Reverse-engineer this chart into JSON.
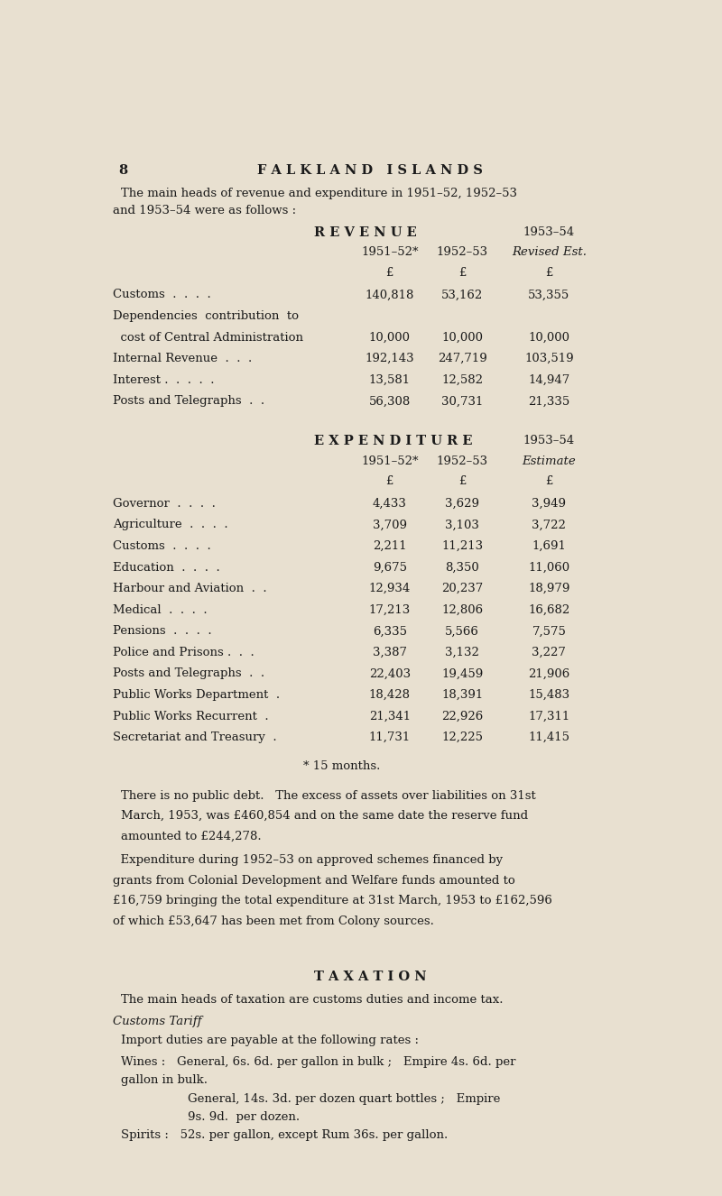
{
  "bg_color": "#e8e0d0",
  "text_color": "#1a1a1a",
  "page_num": "8",
  "page_header": "F A L K L A N D   I S L A N D S",
  "intro_line1": "The main heads of revenue and expenditure in 1951–52, 1952–53",
  "intro_line2": "and 1953–54 were as follows :",
  "revenue_header": "R E V E N U E",
  "revenue_col1": "1951–52*",
  "revenue_col2": "1952–53",
  "revenue_col3": "1953–54",
  "revenue_col3b": "Revised Est.",
  "revenue_pound": "£",
  "revenue_rows": [
    [
      "Customs  .  .  .  .",
      "140,818",
      "53,162",
      "53,355"
    ],
    [
      "Dependencies  contribution  to",
      "",
      "",
      ""
    ],
    [
      "  cost of Central Administration",
      "10,000",
      "10,000",
      "10,000"
    ],
    [
      "Internal Revenue  .  .  .",
      "192,143",
      "247,719",
      "103,519"
    ],
    [
      "Interest .  .  .  .  .",
      "13,581",
      "12,582",
      "14,947"
    ],
    [
      "Posts and Telegraphs  .  .",
      "56,308",
      "30,731",
      "21,335"
    ]
  ],
  "expenditure_header": "E X P E N D I T U R E",
  "exp_col3": "1953–54",
  "exp_col3b": "Estimate",
  "exp_rows": [
    [
      "Governor  .  .  .  .",
      "4,433",
      "3,629",
      "3,949"
    ],
    [
      "Agriculture  .  .  .  .",
      "3,709",
      "3,103",
      "3,722"
    ],
    [
      "Customs  .  .  .  .",
      "2,211",
      "11,213",
      "1,691"
    ],
    [
      "Education  .  .  .  .",
      "9,675",
      "8,350",
      "11,060"
    ],
    [
      "Harbour and Aviation  .  .",
      "12,934",
      "20,237",
      "18,979"
    ],
    [
      "Medical  .  .  .  .",
      "17,213",
      "12,806",
      "16,682"
    ],
    [
      "Pensions  .  .  .  .",
      "6,335",
      "5,566",
      "7,575"
    ],
    [
      "Police and Prisons .  .  .",
      "3,387",
      "3,132",
      "3,227"
    ],
    [
      "Posts and Telegraphs  .  .",
      "22,403",
      "19,459",
      "21,906"
    ],
    [
      "Public Works Department  .",
      "18,428",
      "18,391",
      "15,483"
    ],
    [
      "Public Works Recurrent  .",
      "21,341",
      "22,926",
      "17,311"
    ],
    [
      "Secretariat and Treasury  .",
      "11,731",
      "12,225",
      "11,415"
    ]
  ],
  "footnote": "* 15 months.",
  "para1_lines": [
    "There is no public debt.   The excess of assets over liabilities on 31st",
    "March, 1953, was £460,854 and on the same date the reserve fund",
    "amounted to £244,278."
  ],
  "para2_lines": [
    "  Expenditure during 1952–53 on approved schemes financed by",
    "grants from Colonial Development and Welfare funds amounted to",
    "£16,759 bringing the total expenditure at 31st March, 1953 to £162,596",
    "of which £53,647 has been met from Colony sources."
  ],
  "taxation_header": "T A X A T I O N",
  "taxation_para1": "The main heads of taxation are customs duties and income tax.",
  "customs_tariff_title": "Customs Tariff",
  "customs_tariff_body": "Import duties are payable at the following rates :",
  "wines_lines": [
    "Wines :   General, 6s. 6d. per gallon in bulk ;   Empire 4s. 6d. per",
    "gallon in bulk.",
    "General, 14s. 3d. per dozen quart bottles ;   Empire",
    "9s. 9d.  per dozen."
  ],
  "wines_indent": [
    false,
    false,
    true,
    true
  ],
  "spirits_line": "Spirits :   52s. per gallon, except Rum 36s. per gallon."
}
